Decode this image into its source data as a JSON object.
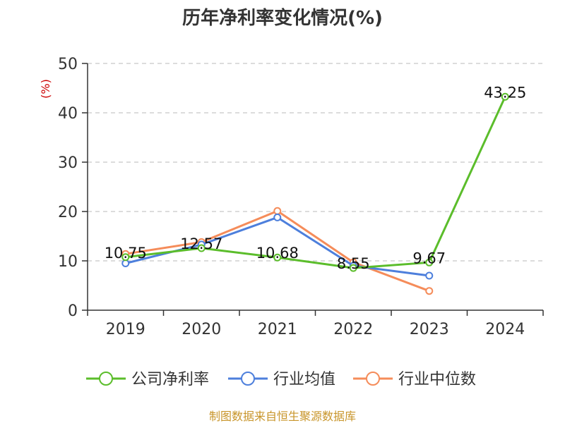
{
  "chart_data": {
    "type": "line",
    "title": "历年净利率变化情况(%)",
    "ylabel": "(%)",
    "xlabel": "",
    "categories": [
      "2019",
      "2020",
      "2021",
      "2022",
      "2023",
      "2024"
    ],
    "ylim": [
      0,
      50
    ],
    "yticks": [
      0,
      10,
      20,
      30,
      40,
      50
    ],
    "grid": true,
    "legend_position": "bottom",
    "series": [
      {
        "name": "公司净利率",
        "color": "#5bbd2b",
        "values": [
          10.75,
          12.57,
          10.68,
          8.55,
          9.67,
          43.25
        ],
        "labels": [
          "10.75",
          "12.57",
          "10.68",
          "8.55",
          "9.67",
          "43.25"
        ]
      },
      {
        "name": "行业均值",
        "color": "#4d7fdc",
        "values": [
          9.5,
          13.3,
          18.8,
          9.0,
          7.0,
          null
        ]
      },
      {
        "name": "行业中位数",
        "color": "#f58c5a",
        "values": [
          11.4,
          13.8,
          20.1,
          9.7,
          3.9,
          null
        ]
      }
    ]
  },
  "source": "制图数据来自恒生聚源数据库"
}
